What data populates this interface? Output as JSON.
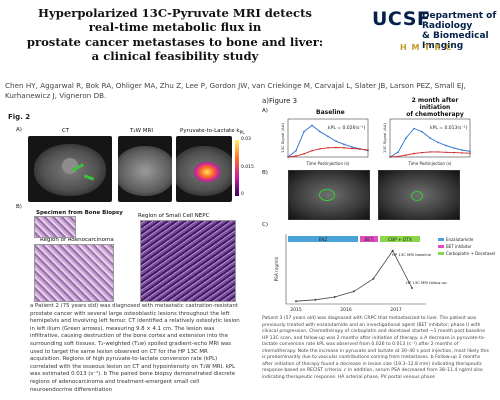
{
  "poster": {
    "title_lines": [
      "Hyperpolarized 13C-Pyruvate MRI detects",
      "real-time metabolic flux in",
      "prostate cancer metastases to bone and liver:",
      "a clinical feasibility study"
    ],
    "authors": "Chen HY, Aggarwal R, Bok RA, Ohliger MA, Zhu Z, Lee P, Gordon JW, van Criekinge M, Carvajal L, Slater JB, Larson PEZ, Small EJ, Kurhanewicz J, Vigneron DB.",
    "logo": {
      "ucsf": "UCSF",
      "dept_line1": "Department of Radiology",
      "dept_line2": "& Biomedical Imaging",
      "hmtrc": "H M T R C"
    }
  },
  "figure2": {
    "label": "Fig. 2",
    "panel_a": "A)",
    "panel_b": "B)",
    "ct_label": "CT",
    "t2_label": "T₂W MRI",
    "ratio_label": "Pyruvate-to-Lactate k",
    "ratio_sub": "PL",
    "colorbar_max": "0.03",
    "colorbar_mid": "0.015",
    "colorbar_min": "0",
    "specimen_label": "Specimen from Bone Biopsy",
    "adeno_label": "Region of Adenocarcinoma",
    "nepc_label": "Region of Small Cell NEPC",
    "caption": "a Patient 2 (75 years old) was diagnosed with metastatic castration-resistant prostate cancer with several large osteoblastic lesions throughout the left hemipelvis and involving left femur. CT identified a relatively osteolytic lesion in left ilium (Green arrows), measuring 9.8 × 4.1 cm. The lesion was infiltrative, causing destruction of the bone cortex and extension into the surrounding soft tissues. T₂-weighted (T₂w) spoiled gradient–echo MRI was used to target the same lesion observed on CT for the HP 13C MR acquisition. Regions of high pyruvate-to-lactate conversion rate (kPL) correlated with the osseous lesion on CT and hypointensity on T₂W MRI. kPL was estimated 0.013 (s⁻¹). b The paired bone biopsy demonstrated discrete regions of adenocarcinoma and treatment-emergent small cell neuroendocrine differentiation"
  },
  "figure3": {
    "label": "a)Figure 3",
    "panel_a": "A)",
    "panel_b": "B)",
    "panel_c": "C)",
    "baseline_title": "Baseline",
    "followup_title": "2 month after initiation",
    "followup_title2": "of chemotherapy",
    "kpl_baseline": "kPL = 0.026(s⁻¹)",
    "kpl_followup": "kPL = 0.013(s⁻¹)",
    "xlabel": "Time Postinjection (s)",
    "ylabel": "13C Signal (AU)",
    "legend": [
      "Enzalutamide",
      "BET inhibitor",
      "Carboplatin + Docetaxel"
    ],
    "psa_ylabel": "PSA (ng/ml)",
    "timeline_labels": [
      "ENZ",
      "BETi",
      "CBP + DTX"
    ],
    "annotations": [
      "HP 13C MRI baseline",
      "HP 13C MRI follow-up"
    ],
    "x_ticks": [
      "2015",
      "2016",
      "2017"
    ],
    "caption": "Patient 3 (57 years old) was diagnosed with CRPC that metastasized to liver. The patient was previously treated with enzalutamide and an investigational agent (BET inhibitor; phase I) with clinical progression. Chemotherapy of carboplatin and docetaxel started ~1 month post baseline HP 13C scan, and follow-up was 2 months after initiation of therapy. a A decrease in pyruvate-to-lactate conversion rate kPL was observed from 0.026 to 0.013 (s⁻¹) after 2 months of chemotherapy. Note the increase in pyruvate and lactate at 30–40 s post injection, most likely this is predominantly due to vascular contributions coming from metastases. b Follow-up 2 months after initiation of therapy found a decrease in lesion size (19.3–12.8 mm) indicating therapeutic response based on RECIST criteria. c In addition, serum PSA decreased from 38–11.4 ng/ml also indicating therapeutic response. HA arterial phase, PV portal venous phase"
  },
  "chart_data": [
    {
      "type": "line",
      "title": "Baseline",
      "xlabel": "Time Postinjection (s)",
      "ylabel": "13C Signal (AU)",
      "x": [
        0,
        6,
        12,
        18,
        24,
        30,
        36,
        42,
        48,
        54,
        60
      ],
      "series": [
        {
          "values": [
            0,
            2,
            8,
            10,
            8,
            6.5,
            5,
            4,
            3.2,
            2.6,
            2
          ]
        },
        {
          "values": [
            0,
            0.3,
            1,
            2,
            2.6,
            2.9,
            3,
            2.9,
            2.7,
            2.5,
            2.2
          ]
        }
      ],
      "xlim": [
        0,
        60
      ],
      "ylim": [
        0,
        12
      ]
    },
    {
      "type": "line",
      "title": "2 month after initiation of chemotherapy",
      "xlabel": "Time Postinjection (s)",
      "ylabel": "13C Signal (AU)",
      "x": [
        0,
        6,
        12,
        18,
        24,
        30,
        36,
        42,
        48,
        54,
        60
      ],
      "series": [
        {
          "values": [
            0,
            1.5,
            6,
            9,
            8,
            6,
            4.6,
            3.6,
            2.8,
            2.2,
            1.8
          ]
        },
        {
          "values": [
            0,
            0.2,
            0.6,
            1.1,
            1.4,
            1.6,
            1.6,
            1.5,
            1.4,
            1.3,
            1.2
          ]
        }
      ],
      "xlim": [
        0,
        60
      ],
      "ylim": [
        0,
        12
      ]
    },
    {
      "type": "line",
      "title": "",
      "xlabel": "",
      "ylabel": "PSA (ng/ml)",
      "x": [
        "2015",
        "2015.5",
        "2016",
        "2016.5",
        "2016.8",
        "2017",
        "2017.2"
      ],
      "series": [
        {
          "values": [
            2,
            3,
            5,
            9,
            18,
            38,
            11.4
          ]
        }
      ],
      "ylim": [
        0,
        40
      ]
    }
  ]
}
